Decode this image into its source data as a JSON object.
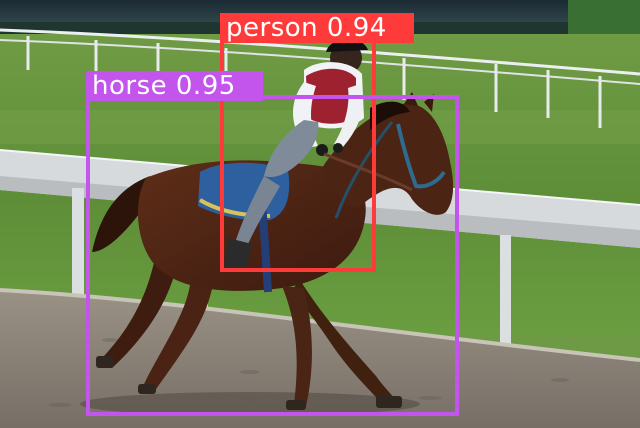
{
  "detections": [
    {
      "label": "person",
      "score": "0.94",
      "color": "#ff3a3a"
    },
    {
      "label": "horse",
      "score": "0.95",
      "color": "#c354ec"
    }
  ],
  "scene": {
    "colors": {
      "grass": "#6f9a45",
      "dirt_track": "#8d877d",
      "rail": "#d8dbdd",
      "stands": "#2b3e44",
      "horse": "#4a2514",
      "saddle_pad": "#2e5f9e",
      "vest": "#9e2130"
    },
    "icons": {
      "person": "jockey-figure",
      "horse": "horse-figure"
    }
  }
}
